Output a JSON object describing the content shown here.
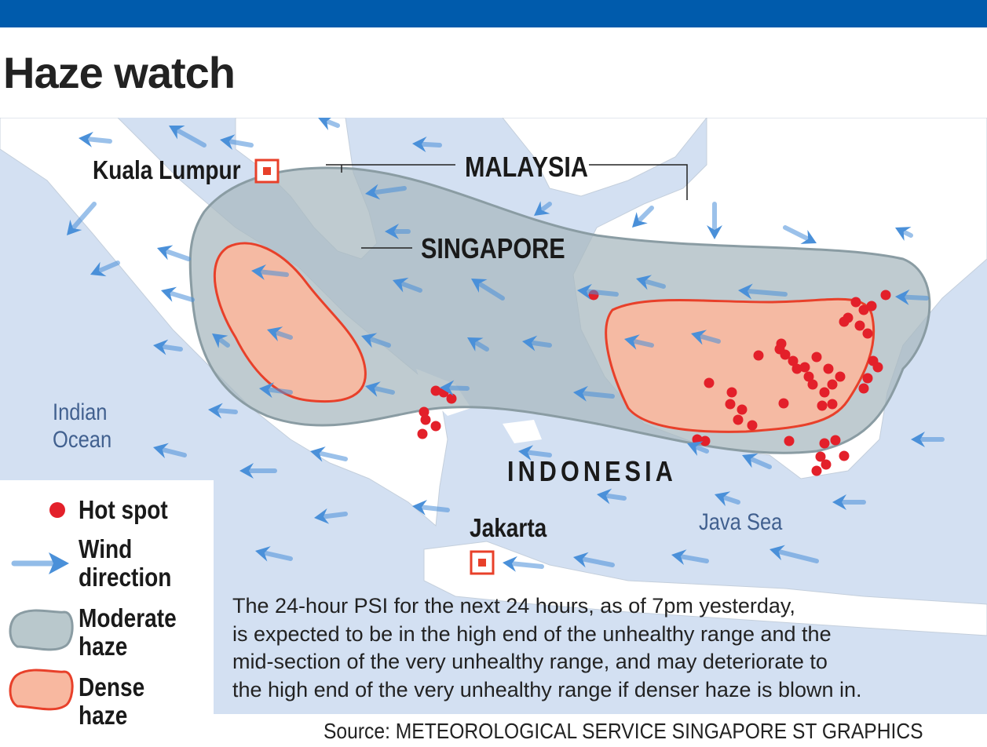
{
  "title": "Haze watch",
  "colors": {
    "top_bar": "#005bac",
    "sea": "#d3e0f2",
    "land": "#ffffff",
    "moderate_haze": "#b9c8cc",
    "dense_haze": "#f8b8a0",
    "dense_outline": "#e8402a",
    "hot_spot": "#e3202a",
    "wind": "#4a90d9"
  },
  "map": {
    "labels": {
      "kuala_lumpur": "Kuala Lumpur",
      "malaysia": "MALAYSIA",
      "singapore": "SINGAPORE",
      "indonesia": "INDONESIA",
      "jakarta": "Jakarta",
      "indian_ocean": "Indian\nOcean",
      "java_sea": "Java Sea"
    }
  },
  "legend": {
    "hot_spot": "Hot spot",
    "wind": "Wind\ndirection",
    "moderate": "Moderate\nhaze",
    "dense": "Dense haze"
  },
  "note": "The 24-hour PSI for the next 24 hours, as of 7pm yesterday,\nis expected to be in the high end of the unhealthy range and the\nmid-section of the very unhealthy range, and may deteriorate to\nthe high end of the very unhealthy range if denser haze is blown in.",
  "source": "Source: METEOROLOGICAL SERVICE SINGAPORE   ST GRAPHICS"
}
